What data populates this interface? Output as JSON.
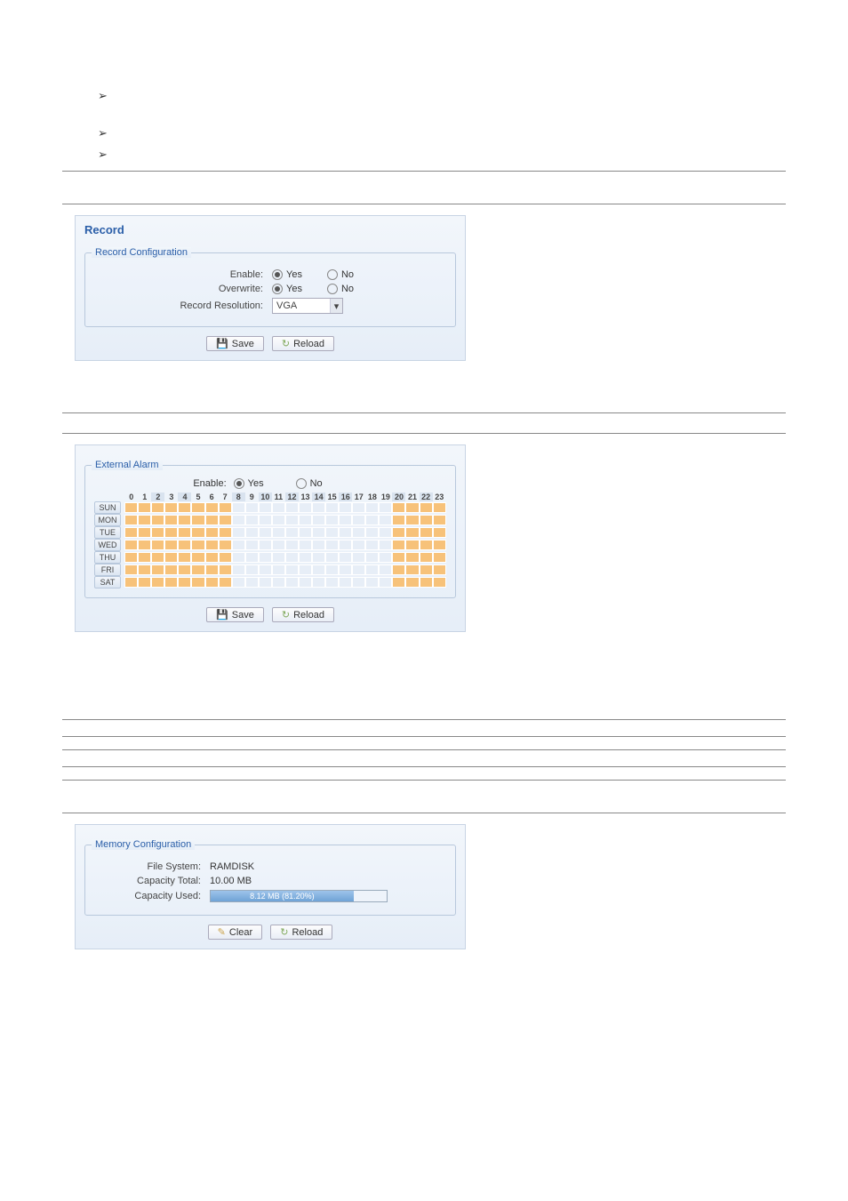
{
  "bullets": [
    "",
    "",
    ""
  ],
  "record_shot": {
    "title": "Record",
    "fieldset_label": "Record Configuration",
    "rows": {
      "enable_label": "Enable:",
      "overwrite_label": "Overwrite:",
      "res_label": "Record Resolution:",
      "yes": "Yes",
      "no": "No",
      "res_value": "VGA"
    },
    "save_btn": "Save",
    "reload_btn": "Reload"
  },
  "alarm_shot": {
    "fieldset_label": "External Alarm",
    "enable_label": "Enable:",
    "yes": "Yes",
    "no": "No",
    "hours": [
      "0",
      "1",
      "2",
      "3",
      "4",
      "5",
      "6",
      "7",
      "8",
      "9",
      "10",
      "11",
      "12",
      "13",
      "14",
      "15",
      "16",
      "17",
      "18",
      "19",
      "20",
      "21",
      "22",
      "23"
    ],
    "hour_band": [
      false,
      false,
      true,
      false,
      true,
      false,
      false,
      false,
      true,
      false,
      true,
      false,
      true,
      false,
      true,
      false,
      true,
      false,
      false,
      false,
      true,
      false,
      true,
      false
    ],
    "days": [
      "SUN",
      "MON",
      "TUE",
      "WED",
      "THU",
      "FRI",
      "SAT"
    ],
    "selection_bands": [
      [
        0,
        8
      ],
      [
        20,
        24
      ]
    ],
    "save_btn": "Save",
    "reload_btn": "Reload"
  },
  "memory_shot": {
    "fieldset_label": "Memory Configuration",
    "fs_label": "File System:",
    "fs_value": "RAMDISK",
    "total_label": "Capacity Total:",
    "total_value": "10.00 MB",
    "used_label": "Capacity Used:",
    "used_text": "8.12 MB (81.20%)",
    "used_pct": 81.2,
    "clear_btn": "Clear",
    "reload_btn": "Reload"
  }
}
